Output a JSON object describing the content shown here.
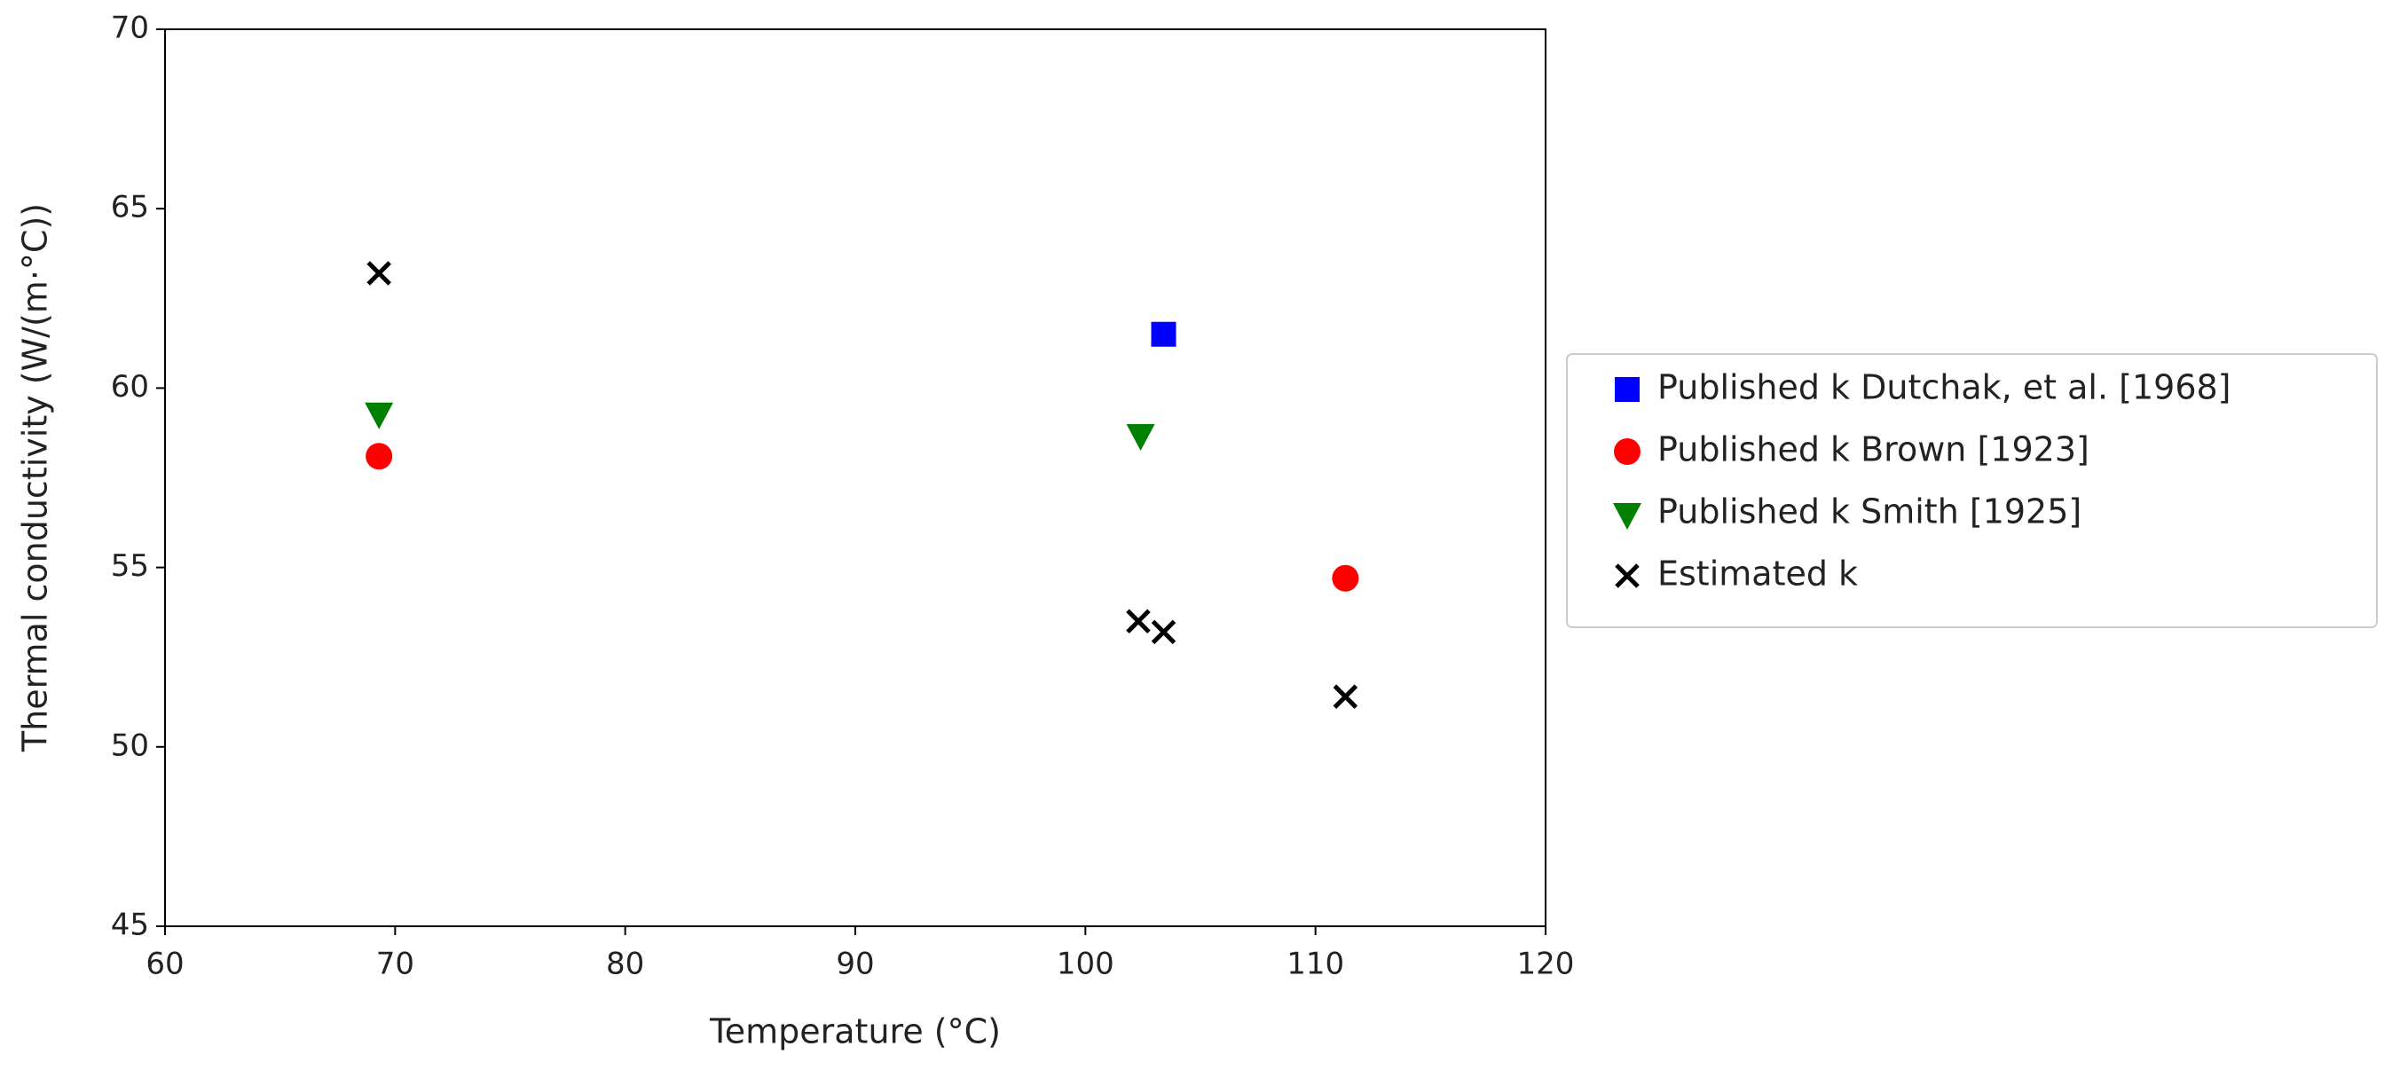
{
  "chart_data": {
    "type": "scatter",
    "x_label": "Temperature (°C)",
    "y_label": "Thermal conductivity (W/(m·°C))",
    "xlim": [
      60,
      120
    ],
    "xticks": [
      60,
      70,
      80,
      90,
      100,
      110,
      120
    ],
    "ylim": [
      45,
      70
    ],
    "yticks": [
      45,
      50,
      55,
      60,
      65,
      70
    ],
    "legend": "outside-right",
    "series": [
      {
        "name": "Published k Dutchak, et al. [1968]",
        "color": "#0000ff",
        "marker": "square",
        "x": [
          103.4
        ],
        "values": [
          61.5
        ]
      },
      {
        "name": "Published k Brown [1923]",
        "color": "#ff0000",
        "marker": "circle",
        "x": [
          69.3,
          111.3
        ],
        "values": [
          58.1,
          54.7
        ]
      },
      {
        "name": "Published k Smith [1925]",
        "color": "#008000",
        "marker": "triangle-down",
        "x": [
          69.3,
          102.4
        ],
        "values": [
          59.3,
          58.7
        ]
      },
      {
        "name": "Estimated k",
        "color": "#000000",
        "marker": "x",
        "x": [
          69.3,
          102.3,
          103.4,
          111.3
        ],
        "values": [
          63.2,
          53.5,
          53.2,
          51.4
        ]
      }
    ]
  }
}
